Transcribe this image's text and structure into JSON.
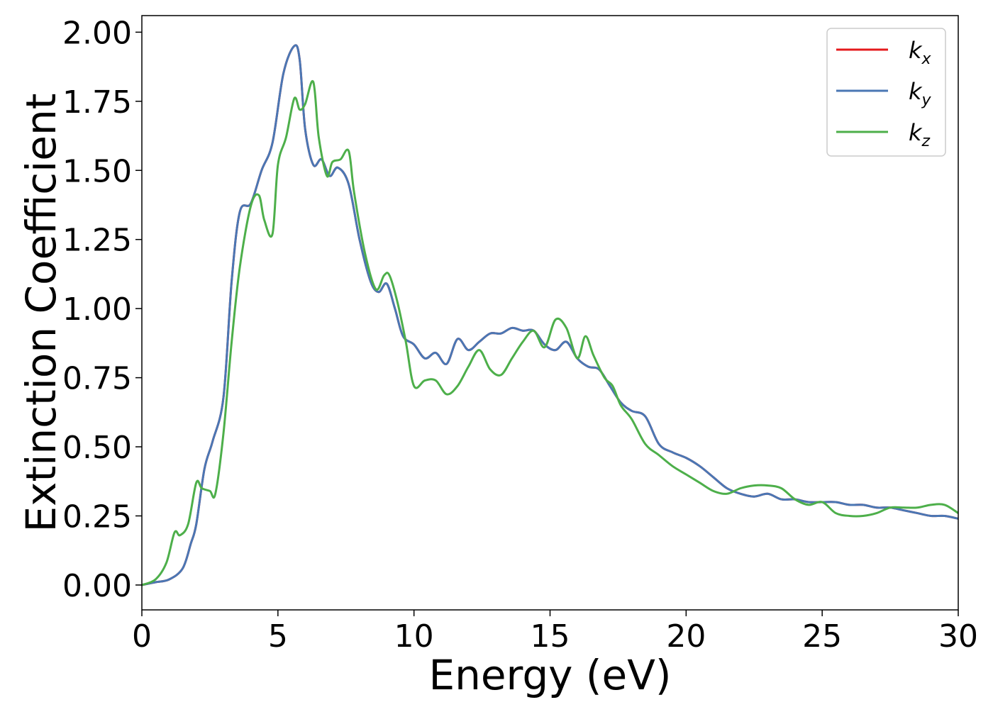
{
  "chart_data": {
    "type": "line",
    "xlabel": "Energy (eV)",
    "ylabel": "Extinction Coefficient",
    "xlim": [
      0,
      30
    ],
    "ylim": [
      -0.09,
      2.06
    ],
    "xticks": [
      0,
      5,
      10,
      15,
      20,
      25,
      30
    ],
    "xtick_labels": [
      "0",
      "5",
      "10",
      "15",
      "20",
      "25",
      "30"
    ],
    "yticks": [
      0,
      0.25,
      0.5,
      0.75,
      1.0,
      1.25,
      1.5,
      1.75,
      2.0
    ],
    "ytick_labels": [
      "0.00",
      "0.25",
      "0.50",
      "0.75",
      "1.00",
      "1.25",
      "1.50",
      "1.75",
      "2.00"
    ],
    "grid": false,
    "legend_position": "top-right",
    "series": [
      {
        "name": "k_x",
        "label_base": "k",
        "label_sub": "x",
        "color": "#e41a1c",
        "x": [
          0,
          0.5,
          1.0,
          1.5,
          1.8,
          2.0,
          2.3,
          2.6,
          3.0,
          3.3,
          3.6,
          4.0,
          4.4,
          4.8,
          5.2,
          5.6,
          5.8,
          6.0,
          6.3,
          6.6,
          6.9,
          7.2,
          7.6,
          8.0,
          8.4,
          8.7,
          9.0,
          9.3,
          9.6,
          10.0,
          10.4,
          10.8,
          11.2,
          11.6,
          12.0,
          12.4,
          12.8,
          13.2,
          13.6,
          14.0,
          14.4,
          14.8,
          15.2,
          15.6,
          16.0,
          16.4,
          16.8,
          17.2,
          17.6,
          18.0,
          18.5,
          19.0,
          19.5,
          20.0,
          20.5,
          21.0,
          21.5,
          22.0,
          22.5,
          23.0,
          23.5,
          24.0,
          24.5,
          25.0,
          25.5,
          26.0,
          26.5,
          27.0,
          27.5,
          28.0,
          28.5,
          29.0,
          29.5,
          30.0
        ],
        "y": [
          0.0,
          0.01,
          0.02,
          0.06,
          0.15,
          0.22,
          0.42,
          0.52,
          0.68,
          1.1,
          1.35,
          1.38,
          1.5,
          1.6,
          1.85,
          1.95,
          1.9,
          1.65,
          1.52,
          1.54,
          1.48,
          1.51,
          1.45,
          1.25,
          1.1,
          1.06,
          1.09,
          1.0,
          0.9,
          0.87,
          0.82,
          0.84,
          0.8,
          0.89,
          0.85,
          0.88,
          0.91,
          0.91,
          0.93,
          0.92,
          0.92,
          0.87,
          0.85,
          0.88,
          0.82,
          0.79,
          0.78,
          0.72,
          0.66,
          0.63,
          0.61,
          0.51,
          0.48,
          0.46,
          0.43,
          0.39,
          0.35,
          0.33,
          0.32,
          0.33,
          0.31,
          0.31,
          0.3,
          0.3,
          0.3,
          0.29,
          0.29,
          0.28,
          0.28,
          0.27,
          0.26,
          0.25,
          0.25,
          0.24
        ]
      },
      {
        "name": "k_y",
        "label_base": "k",
        "label_sub": "y",
        "color": "#4a77b4",
        "x": [
          0,
          0.5,
          1.0,
          1.5,
          1.8,
          2.0,
          2.3,
          2.6,
          3.0,
          3.3,
          3.6,
          4.0,
          4.4,
          4.8,
          5.2,
          5.6,
          5.8,
          6.0,
          6.3,
          6.6,
          6.9,
          7.2,
          7.6,
          8.0,
          8.4,
          8.7,
          9.0,
          9.3,
          9.6,
          10.0,
          10.4,
          10.8,
          11.2,
          11.6,
          12.0,
          12.4,
          12.8,
          13.2,
          13.6,
          14.0,
          14.4,
          14.8,
          15.2,
          15.6,
          16.0,
          16.4,
          16.8,
          17.2,
          17.6,
          18.0,
          18.5,
          19.0,
          19.5,
          20.0,
          20.5,
          21.0,
          21.5,
          22.0,
          22.5,
          23.0,
          23.5,
          24.0,
          24.5,
          25.0,
          25.5,
          26.0,
          26.5,
          27.0,
          27.5,
          28.0,
          28.5,
          29.0,
          29.5,
          30.0
        ],
        "y": [
          0.0,
          0.01,
          0.02,
          0.06,
          0.15,
          0.22,
          0.42,
          0.52,
          0.68,
          1.1,
          1.35,
          1.38,
          1.5,
          1.6,
          1.85,
          1.95,
          1.9,
          1.65,
          1.52,
          1.54,
          1.48,
          1.51,
          1.45,
          1.25,
          1.1,
          1.06,
          1.09,
          1.0,
          0.9,
          0.87,
          0.82,
          0.84,
          0.8,
          0.89,
          0.85,
          0.88,
          0.91,
          0.91,
          0.93,
          0.92,
          0.92,
          0.87,
          0.85,
          0.88,
          0.82,
          0.79,
          0.78,
          0.72,
          0.66,
          0.63,
          0.61,
          0.51,
          0.48,
          0.46,
          0.43,
          0.39,
          0.35,
          0.33,
          0.32,
          0.33,
          0.31,
          0.31,
          0.3,
          0.3,
          0.3,
          0.29,
          0.29,
          0.28,
          0.28,
          0.27,
          0.26,
          0.25,
          0.25,
          0.24
        ]
      },
      {
        "name": "k_z",
        "label_base": "k",
        "label_sub": "z",
        "color": "#4daf4a",
        "x": [
          0,
          0.5,
          0.9,
          1.2,
          1.4,
          1.7,
          2.0,
          2.2,
          2.5,
          2.7,
          3.0,
          3.3,
          3.6,
          4.0,
          4.3,
          4.5,
          4.8,
          5.0,
          5.3,
          5.6,
          5.8,
          6.0,
          6.3,
          6.5,
          6.8,
          7.0,
          7.3,
          7.6,
          7.8,
          8.2,
          8.6,
          8.9,
          9.1,
          9.4,
          9.7,
          10.0,
          10.4,
          10.8,
          11.2,
          11.6,
          12.0,
          12.4,
          12.8,
          13.2,
          13.6,
          14.0,
          14.4,
          14.8,
          15.2,
          15.6,
          16.0,
          16.3,
          16.6,
          17.0,
          17.3,
          17.6,
          18.0,
          18.5,
          19.0,
          19.5,
          20.0,
          20.5,
          21.0,
          21.5,
          22.0,
          22.5,
          23.0,
          23.5,
          24.0,
          24.5,
          25.0,
          25.5,
          26.0,
          26.5,
          27.0,
          27.5,
          28.0,
          28.5,
          29.0,
          29.5,
          30.0
        ],
        "y": [
          0.0,
          0.02,
          0.08,
          0.19,
          0.18,
          0.22,
          0.37,
          0.35,
          0.34,
          0.33,
          0.55,
          0.88,
          1.15,
          1.37,
          1.41,
          1.32,
          1.27,
          1.52,
          1.62,
          1.76,
          1.72,
          1.74,
          1.82,
          1.62,
          1.48,
          1.53,
          1.54,
          1.57,
          1.42,
          1.2,
          1.07,
          1.12,
          1.12,
          1.02,
          0.88,
          0.72,
          0.74,
          0.74,
          0.69,
          0.72,
          0.79,
          0.85,
          0.78,
          0.76,
          0.82,
          0.88,
          0.92,
          0.86,
          0.96,
          0.93,
          0.82,
          0.9,
          0.83,
          0.75,
          0.72,
          0.65,
          0.6,
          0.51,
          0.47,
          0.43,
          0.4,
          0.37,
          0.34,
          0.33,
          0.35,
          0.36,
          0.36,
          0.35,
          0.31,
          0.29,
          0.3,
          0.26,
          0.25,
          0.25,
          0.26,
          0.28,
          0.28,
          0.28,
          0.29,
          0.29,
          0.26
        ]
      }
    ]
  }
}
